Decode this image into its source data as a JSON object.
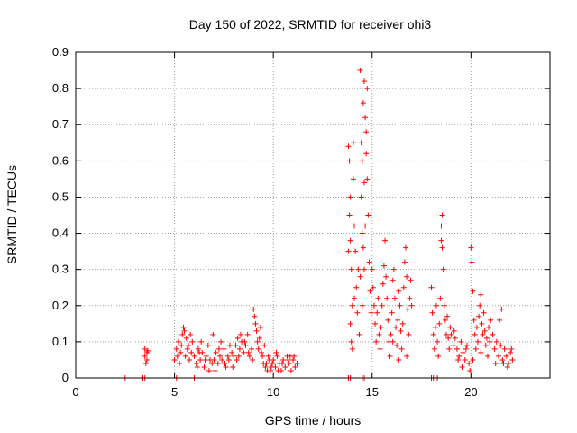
{
  "chart_data": {
    "type": "scatter",
    "title": "Day 150 of 2022, SRMTID for receiver ohi3",
    "xlabel": "GPS time / hours",
    "ylabel": "SRMTID / TECUs",
    "xlim": [
      0,
      24
    ],
    "ylim": [
      0,
      0.9
    ],
    "xticks": [
      0,
      5,
      10,
      15,
      20
    ],
    "yticks": [
      0,
      0.1,
      0.2,
      0.3,
      0.4,
      0.5,
      0.6,
      0.7,
      0.8,
      0.9
    ],
    "grid": true,
    "marker": "+",
    "color": "#ff0000",
    "series": [
      {
        "name": "ohi3",
        "points": [
          [
            2.5,
            0.0
          ],
          [
            3.4,
            0.0
          ],
          [
            3.5,
            0.0
          ],
          [
            5.1,
            0.0
          ],
          [
            6.0,
            0.0
          ],
          [
            13.8,
            0.0
          ],
          [
            13.9,
            0.0
          ],
          [
            14.5,
            0.0
          ],
          [
            14.6,
            0.0
          ],
          [
            18.0,
            0.0
          ],
          [
            18.1,
            0.0
          ],
          [
            18.3,
            0.0
          ],
          [
            3.5,
            0.08
          ],
          [
            3.5,
            0.06
          ],
          [
            3.6,
            0.07
          ],
          [
            3.6,
            0.05
          ],
          [
            3.55,
            0.04
          ],
          [
            3.65,
            0.075
          ],
          [
            5.0,
            0.05
          ],
          [
            5.1,
            0.08
          ],
          [
            5.2,
            0.1
          ],
          [
            5.3,
            0.07
          ],
          [
            5.4,
            0.12
          ],
          [
            5.5,
            0.13
          ],
          [
            5.6,
            0.11
          ],
          [
            5.7,
            0.09
          ],
          [
            5.8,
            0.12
          ],
          [
            5.9,
            0.1
          ],
          [
            5.45,
            0.14
          ],
          [
            5.55,
            0.06
          ],
          [
            5.25,
            0.04
          ],
          [
            5.35,
            0.09
          ],
          [
            5.65,
            0.08
          ],
          [
            5.75,
            0.05
          ],
          [
            5.15,
            0.06
          ],
          [
            5.85,
            0.07
          ],
          [
            6.0,
            0.06
          ],
          [
            6.1,
            0.04
          ],
          [
            6.2,
            0.08
          ],
          [
            6.3,
            0.05
          ],
          [
            6.4,
            0.07
          ],
          [
            6.5,
            0.03
          ],
          [
            6.6,
            0.06
          ],
          [
            6.7,
            0.09
          ],
          [
            6.8,
            0.05
          ],
          [
            6.9,
            0.04
          ],
          [
            6.95,
            0.12
          ],
          [
            6.15,
            0.03
          ],
          [
            6.35,
            0.1
          ],
          [
            6.55,
            0.05
          ],
          [
            6.75,
            0.02
          ],
          [
            6.25,
            0.07
          ],
          [
            7.0,
            0.05
          ],
          [
            7.1,
            0.07
          ],
          [
            7.2,
            0.04
          ],
          [
            7.3,
            0.06
          ],
          [
            7.4,
            0.05
          ],
          [
            7.5,
            0.08
          ],
          [
            7.6,
            0.03
          ],
          [
            7.7,
            0.06
          ],
          [
            7.8,
            0.09
          ],
          [
            7.9,
            0.07
          ],
          [
            7.05,
            0.02
          ],
          [
            7.35,
            0.1
          ],
          [
            7.55,
            0.04
          ],
          [
            7.75,
            0.05
          ],
          [
            7.95,
            0.03
          ],
          [
            7.25,
            0.08
          ],
          [
            8.0,
            0.06
          ],
          [
            8.1,
            0.09
          ],
          [
            8.2,
            0.11
          ],
          [
            8.3,
            0.08
          ],
          [
            8.4,
            0.1
          ],
          [
            8.5,
            0.07
          ],
          [
            8.6,
            0.09
          ],
          [
            8.7,
            0.12
          ],
          [
            8.8,
            0.06
          ],
          [
            8.9,
            0.08
          ],
          [
            8.95,
            0.05
          ],
          [
            8.15,
            0.05
          ],
          [
            8.35,
            0.12
          ],
          [
            8.55,
            0.1
          ],
          [
            8.75,
            0.07
          ],
          [
            8.25,
            0.06
          ],
          [
            9.0,
            0.19
          ],
          [
            9.05,
            0.17
          ],
          [
            9.1,
            0.15
          ],
          [
            9.15,
            0.13
          ],
          [
            9.2,
            0.1
          ],
          [
            9.25,
            0.08
          ],
          [
            9.3,
            0.11
          ],
          [
            9.4,
            0.07
          ],
          [
            9.5,
            0.04
          ],
          [
            9.6,
            0.03
          ],
          [
            9.7,
            0.02
          ],
          [
            9.8,
            0.05
          ],
          [
            9.9,
            0.03
          ],
          [
            9.35,
            0.14
          ],
          [
            9.45,
            0.06
          ],
          [
            9.55,
            0.09
          ],
          [
            9.65,
            0.04
          ],
          [
            9.75,
            0.06
          ],
          [
            9.85,
            0.02
          ],
          [
            9.95,
            0.04
          ],
          [
            10.0,
            0.05
          ],
          [
            10.1,
            0.03
          ],
          [
            10.2,
            0.06
          ],
          [
            10.3,
            0.04
          ],
          [
            10.4,
            0.02
          ],
          [
            10.5,
            0.05
          ],
          [
            10.6,
            0.03
          ],
          [
            10.7,
            0.06
          ],
          [
            10.8,
            0.04
          ],
          [
            10.9,
            0.02
          ],
          [
            11.0,
            0.05
          ],
          [
            11.1,
            0.03
          ],
          [
            11.2,
            0.04
          ],
          [
            10.15,
            0.07
          ],
          [
            10.45,
            0.04
          ],
          [
            10.75,
            0.05
          ],
          [
            11.05,
            0.06
          ],
          [
            10.25,
            0.02
          ],
          [
            10.85,
            0.06
          ],
          [
            13.8,
            0.64
          ],
          [
            13.85,
            0.6
          ],
          [
            13.9,
            0.5
          ],
          [
            13.85,
            0.45
          ],
          [
            13.9,
            0.38
          ],
          [
            13.95,
            0.3
          ],
          [
            14.0,
            0.2
          ],
          [
            13.9,
            0.15
          ],
          [
            13.95,
            0.1
          ],
          [
            14.0,
            0.08
          ],
          [
            14.05,
            0.55
          ],
          [
            14.1,
            0.42
          ],
          [
            14.15,
            0.35
          ],
          [
            14.2,
            0.25
          ],
          [
            14.25,
            0.18
          ],
          [
            14.3,
            0.3
          ],
          [
            14.35,
            0.12
          ],
          [
            14.05,
            0.65
          ],
          [
            13.8,
            0.35
          ],
          [
            14.1,
            0.22
          ],
          [
            14.4,
            0.85
          ],
          [
            14.45,
            0.65
          ],
          [
            14.5,
            0.6
          ],
          [
            14.55,
            0.76
          ],
          [
            14.6,
            0.82
          ],
          [
            14.65,
            0.72
          ],
          [
            14.7,
            0.68
          ],
          [
            14.75,
            0.55
          ],
          [
            14.8,
            0.45
          ],
          [
            14.85,
            0.32
          ],
          [
            14.9,
            0.24
          ],
          [
            14.95,
            0.18
          ],
          [
            14.45,
            0.5
          ],
          [
            14.5,
            0.4
          ],
          [
            14.55,
            0.36
          ],
          [
            14.6,
            0.3
          ],
          [
            14.65,
            0.42
          ],
          [
            14.7,
            0.62
          ],
          [
            14.75,
            0.8
          ],
          [
            14.6,
            0.54
          ],
          [
            14.4,
            0.28
          ],
          [
            14.5,
            0.2
          ],
          [
            15.0,
            0.3
          ],
          [
            15.05,
            0.25
          ],
          [
            15.1,
            0.2
          ],
          [
            15.15,
            0.15
          ],
          [
            15.2,
            0.1
          ],
          [
            15.25,
            0.18
          ],
          [
            15.3,
            0.22
          ],
          [
            15.35,
            0.12
          ],
          [
            15.4,
            0.08
          ],
          [
            15.45,
            0.14
          ],
          [
            15.5,
            0.2
          ],
          [
            15.55,
            0.26
          ],
          [
            15.6,
            0.31
          ],
          [
            15.65,
            0.38
          ],
          [
            15.7,
            0.28
          ],
          [
            15.75,
            0.22
          ],
          [
            15.8,
            0.16
          ],
          [
            15.85,
            0.1
          ],
          [
            15.9,
            0.06
          ],
          [
            15.95,
            0.12
          ],
          [
            16.0,
            0.18
          ],
          [
            16.05,
            0.27
          ],
          [
            16.1,
            0.3
          ],
          [
            16.15,
            0.22
          ],
          [
            16.2,
            0.14
          ],
          [
            16.25,
            0.09
          ],
          [
            16.3,
            0.16
          ],
          [
            16.35,
            0.24
          ],
          [
            16.4,
            0.2
          ],
          [
            16.45,
            0.13
          ],
          [
            16.5,
            0.08
          ],
          [
            16.55,
            0.15
          ],
          [
            16.6,
            0.25
          ],
          [
            16.65,
            0.32
          ],
          [
            16.7,
            0.36
          ],
          [
            16.75,
            0.28
          ],
          [
            16.8,
            0.19
          ],
          [
            16.85,
            0.12
          ],
          [
            16.9,
            0.22
          ],
          [
            16.95,
            0.27
          ],
          [
            17.0,
            0.2
          ],
          [
            16.05,
            0.1
          ],
          [
            16.35,
            0.05
          ],
          [
            16.75,
            0.06
          ],
          [
            18.0,
            0.25
          ],
          [
            18.05,
            0.18
          ],
          [
            18.1,
            0.12
          ],
          [
            18.15,
            0.08
          ],
          [
            18.2,
            0.14
          ],
          [
            18.25,
            0.2
          ],
          [
            18.3,
            0.1
          ],
          [
            18.35,
            0.06
          ],
          [
            18.4,
            0.15
          ],
          [
            18.45,
            0.22
          ],
          [
            18.5,
            0.38
          ],
          [
            18.55,
            0.45
          ],
          [
            18.6,
            0.3
          ],
          [
            18.65,
            0.2
          ],
          [
            18.7,
            0.16
          ],
          [
            18.75,
            0.12
          ],
          [
            18.8,
            0.17
          ],
          [
            18.85,
            0.11
          ],
          [
            18.9,
            0.08
          ],
          [
            18.95,
            0.14
          ],
          [
            18.5,
            0.42
          ],
          [
            18.55,
            0.36
          ],
          [
            19.0,
            0.12
          ],
          [
            19.1,
            0.09
          ],
          [
            19.2,
            0.11
          ],
          [
            19.3,
            0.08
          ],
          [
            19.4,
            0.06
          ],
          [
            19.5,
            0.1
          ],
          [
            19.6,
            0.07
          ],
          [
            19.7,
            0.05
          ],
          [
            19.8,
            0.09
          ],
          [
            19.9,
            0.04
          ],
          [
            19.15,
            0.13
          ],
          [
            19.35,
            0.05
          ],
          [
            19.55,
            0.03
          ],
          [
            19.75,
            0.08
          ],
          [
            19.95,
            0.02
          ],
          [
            20.0,
            0.36
          ],
          [
            20.05,
            0.32
          ],
          [
            20.1,
            0.24
          ],
          [
            20.15,
            0.16
          ],
          [
            20.2,
            0.12
          ],
          [
            20.25,
            0.08
          ],
          [
            20.3,
            0.14
          ],
          [
            20.35,
            0.1
          ],
          [
            20.4,
            0.17
          ],
          [
            20.45,
            0.2
          ],
          [
            20.5,
            0.23
          ],
          [
            20.55,
            0.15
          ],
          [
            20.6,
            0.12
          ],
          [
            20.65,
            0.18
          ],
          [
            20.7,
            0.13
          ],
          [
            20.75,
            0.09
          ],
          [
            20.8,
            0.11
          ],
          [
            20.85,
            0.06
          ],
          [
            20.9,
            0.14
          ],
          [
            20.95,
            0.1
          ],
          [
            20.1,
            0.05
          ],
          [
            20.5,
            0.07
          ],
          [
            21.0,
            0.16
          ],
          [
            21.1,
            0.12
          ],
          [
            21.2,
            0.08
          ],
          [
            21.3,
            0.1
          ],
          [
            21.4,
            0.06
          ],
          [
            21.5,
            0.09
          ],
          [
            21.6,
            0.05
          ],
          [
            21.7,
            0.08
          ],
          [
            21.8,
            0.06
          ],
          [
            21.9,
            0.04
          ],
          [
            22.0,
            0.07
          ],
          [
            22.1,
            0.05
          ],
          [
            21.55,
            0.19
          ],
          [
            21.45,
            0.16
          ],
          [
            21.65,
            0.04
          ],
          [
            21.85,
            0.03
          ],
          [
            22.05,
            0.08
          ],
          [
            21.25,
            0.04
          ]
        ]
      }
    ]
  }
}
